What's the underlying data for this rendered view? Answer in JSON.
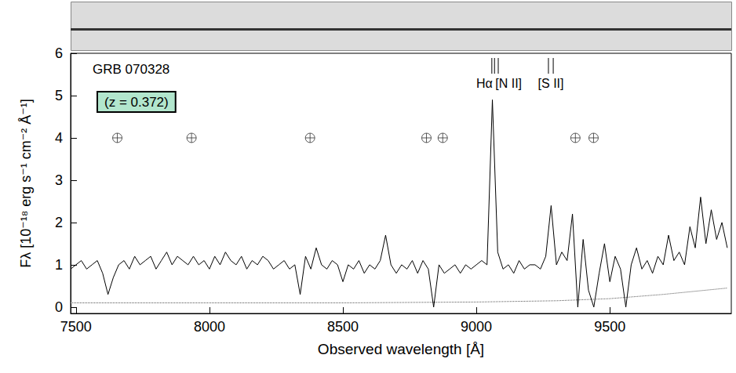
{
  "chart_data": {
    "type": "line",
    "title": "GRB 070328",
    "subtitle": "(z = 0.372)",
    "xlabel": "Observed wavelength [Å]",
    "ylabel": "Fλ [10⁻¹⁸ erg s⁻¹ cm⁻² Å⁻¹]",
    "xlim": [
      7480,
      9955
    ],
    "xticks": [
      7500,
      8000,
      8500,
      9000,
      9500
    ],
    "ylim": [
      -0.15,
      6
    ],
    "yticks": [
      0,
      1,
      2,
      3,
      4,
      5,
      6
    ],
    "grid": false,
    "line_marks": [
      {
        "label": "Hα",
        "x": [
          9058
        ]
      },
      {
        "label": "[N II]",
        "x": [
          9068,
          9082
        ]
      },
      {
        "label": "[S II]",
        "x": [
          9270,
          9288
        ]
      }
    ],
    "series": [
      {
        "type": "line",
        "color": "#000000",
        "line_style": "solid",
        "x": [
          7480,
          7500,
          7520,
          7540,
          7560,
          7580,
          7600,
          7620,
          7640,
          7660,
          7680,
          7700,
          7720,
          7740,
          7760,
          7780,
          7800,
          7820,
          7840,
          7860,
          7880,
          7900,
          7920,
          7940,
          7960,
          7980,
          8000,
          8020,
          8040,
          8060,
          8080,
          8100,
          8120,
          8140,
          8160,
          8180,
          8200,
          8220,
          8240,
          8260,
          8280,
          8300,
          8320,
          8340,
          8360,
          8380,
          8400,
          8420,
          8440,
          8460,
          8480,
          8500,
          8520,
          8540,
          8560,
          8580,
          8600,
          8620,
          8640,
          8660,
          8680,
          8700,
          8720,
          8740,
          8760,
          8780,
          8800,
          8820,
          8840,
          8860,
          8880,
          8900,
          8920,
          8940,
          8960,
          8980,
          9000,
          9020,
          9040,
          9060,
          9080,
          9100,
          9120,
          9140,
          9160,
          9180,
          9200,
          9220,
          9240,
          9260,
          9280,
          9300,
          9320,
          9340,
          9360,
          9380,
          9400,
          9420,
          9440,
          9460,
          9480,
          9500,
          9520,
          9540,
          9560,
          9580,
          9600,
          9620,
          9640,
          9660,
          9680,
          9700,
          9720,
          9740,
          9760,
          9780,
          9800,
          9820,
          9840,
          9860,
          9880,
          9900,
          9920,
          9940
        ],
        "values": [
          0.9,
          1.0,
          1.1,
          0.9,
          1.0,
          1.1,
          0.8,
          0.3,
          0.7,
          1.0,
          1.1,
          0.9,
          1.2,
          1.0,
          1.1,
          1.2,
          0.9,
          1.1,
          1.3,
          1.0,
          1.2,
          1.1,
          1.0,
          1.2,
          1.0,
          1.1,
          0.9,
          1.2,
          1.0,
          1.3,
          1.1,
          1.0,
          1.2,
          0.9,
          1.1,
          1.0,
          1.2,
          1.1,
          0.9,
          1.0,
          1.1,
          0.9,
          1.0,
          0.3,
          1.2,
          0.9,
          1.4,
          1.0,
          0.9,
          1.1,
          1.0,
          0.6,
          1.0,
          0.9,
          1.1,
          0.8,
          1.0,
          0.9,
          1.1,
          1.7,
          1.0,
          0.8,
          1.0,
          0.9,
          1.1,
          0.8,
          1.1,
          0.9,
          0.0,
          1.0,
          0.8,
          0.9,
          1.0,
          0.8,
          1.0,
          0.9,
          1.0,
          1.1,
          1.0,
          4.9,
          1.3,
          0.9,
          1.0,
          0.8,
          1.1,
          0.9,
          1.0,
          1.0,
          0.9,
          1.2,
          2.4,
          1.0,
          1.3,
          1.1,
          2.2,
          0.0,
          1.6,
          0.4,
          0.0,
          0.8,
          1.5,
          0.6,
          1.2,
          0.9,
          0.0,
          1.0,
          1.4,
          0.9,
          1.1,
          0.8,
          1.2,
          1.0,
          1.7,
          1.1,
          1.3,
          1.0,
          1.9,
          1.4,
          2.6,
          1.5,
          2.3,
          1.6,
          2.0,
          1.4
        ]
      },
      {
        "type": "line",
        "color": "#555555",
        "line_style": "dotted",
        "x": [
          7480,
          8000,
          8500,
          9000,
          9300,
          9500,
          9700,
          9940
        ],
        "values": [
          0.1,
          0.1,
          0.1,
          0.12,
          0.15,
          0.2,
          0.3,
          0.45
        ]
      },
      {
        "type": "scatter",
        "color": "#333333",
        "marker": "circle-plus",
        "x": [
          7655,
          7933,
          8377,
          8813,
          8874,
          9371,
          9439
        ],
        "values": [
          4,
          4,
          4,
          4,
          4,
          4,
          4
        ]
      }
    ]
  }
}
